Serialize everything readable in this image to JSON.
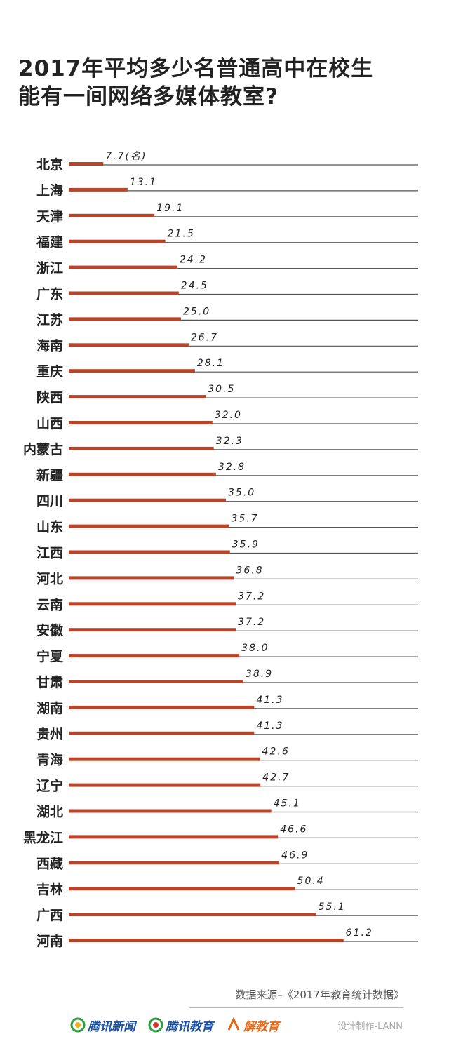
{
  "title_lines": [
    "2017年平均多少名普通高中在校生",
    "能有一间网络多媒体教室?"
  ],
  "source": "数据来源–《2017年教育统计数据》",
  "logos": [
    "腾讯新闻",
    "腾讯教育",
    "解教育"
  ],
  "credit": "设计制作-LANN",
  "unit_label": "(名)",
  "colors": {
    "bar": "#b5462b",
    "line": "#555555",
    "text": "#222222"
  },
  "chart_data": {
    "type": "bar",
    "orientation": "horizontal",
    "title": "2017年平均多少名普通高中在校生能有一间网络多媒体教室?",
    "categories": [
      "北京",
      "上海",
      "天津",
      "福建",
      "浙江",
      "广东",
      "江苏",
      "海南",
      "重庆",
      "陕西",
      "山西",
      "内蒙古",
      "新疆",
      "四川",
      "山东",
      "江西",
      "河北",
      "云南",
      "安徽",
      "宁夏",
      "甘肃",
      "湖南",
      "贵州",
      "青海",
      "辽宁",
      "湖北",
      "黑龙江",
      "西藏",
      "吉林",
      "广西",
      "河南"
    ],
    "values": [
      7.7,
      13.1,
      19.1,
      21.5,
      24.2,
      24.5,
      25.0,
      26.7,
      28.1,
      30.5,
      32.0,
      32.3,
      32.8,
      35.0,
      35.7,
      35.9,
      36.8,
      37.2,
      37.2,
      38.0,
      38.9,
      41.3,
      41.3,
      42.6,
      42.7,
      45.1,
      46.6,
      46.9,
      50.4,
      55.1,
      61.2
    ],
    "value_labels": [
      "7.7",
      "13.1",
      "19.1",
      "21.5",
      "24.2",
      "24.5",
      "25.0",
      "26.7",
      "28.1",
      "30.5",
      "32.0",
      "32.3",
      "32.8",
      "35.0",
      "35.7",
      "35.9",
      "36.8",
      "37.2",
      "37.2",
      "38.0",
      "38.9",
      "41.3",
      "41.3",
      "42.6",
      "42.7",
      "45.1",
      "46.6",
      "46.9",
      "50.4",
      "55.1",
      "61.2"
    ],
    "xlim": [
      0,
      80
    ],
    "grid": false
  }
}
